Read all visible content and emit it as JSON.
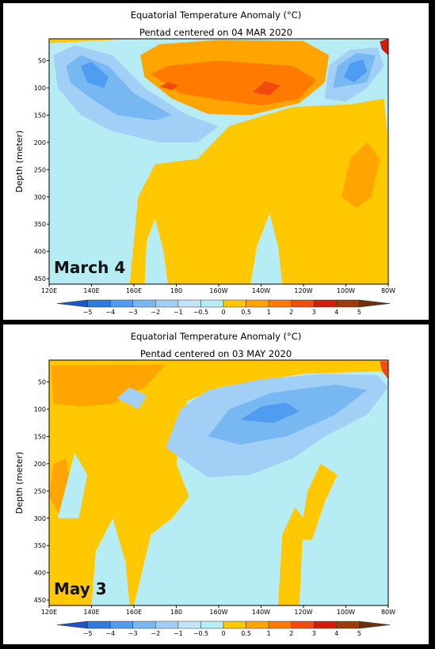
{
  "colors": {
    "le_m5": "#1a55c8",
    "m5_m4": "#2d7be0",
    "m4_m3": "#4e9df0",
    "m3_m2": "#78b8f2",
    "m2_m1": "#a2cff6",
    "m1_m05": "#c4e3f7",
    "m05_0": "#b6ecf3",
    "p0_05": "#ffc800",
    "p05_1": "#ffa400",
    "p1_2": "#ff7a00",
    "p2_3": "#f24a0f",
    "p3_4": "#d41b0c",
    "p4_5": "#9a3d0c",
    "ge_5": "#6b300c"
  },
  "chart_data": [
    {
      "type": "heatmap",
      "title": "Equatorial Temperature Anomaly (°C)",
      "subtitle": "Pentad centered on 04 MAR 2020",
      "ylabel": "Depth (meter)",
      "xlabel": "",
      "overlay_label": "March 4",
      "x_ticks": [
        "120E",
        "140E",
        "160E",
        "180",
        "160W",
        "140W",
        "120W",
        "100W",
        "80W"
      ],
      "y_ticks": [
        "50",
        "100",
        "150",
        "200",
        "250",
        "300",
        "350",
        "400",
        "450"
      ],
      "ylim": [
        460,
        10
      ],
      "colorbar_ticks": [
        "−5",
        "−4",
        "−3",
        "−2",
        "−1",
        "−0.5",
        "0",
        "0.5",
        "1",
        "2",
        "3",
        "4",
        "5"
      ],
      "features": [
        {
          "level": "m05_0",
          "region": "background"
        },
        {
          "level": "p0_05",
          "region": "warm water beneath thermocline, 160E–85W, 150–460 m"
        },
        {
          "level": "p05_1",
          "region": "upper layer 165E–115W, 20–140 m"
        },
        {
          "level": "p1_2",
          "region": "core 170E–125W, 60–130 m"
        },
        {
          "level": "p2_3",
          "region": "peaks near 175E and 145W, ~100 m"
        },
        {
          "level": "m3_m2",
          "region": "cool tongue 128E–170E, 40–180 m"
        },
        {
          "level": "m4_m3",
          "region": "eastern cool core 110W–95W, 40–100 m"
        },
        {
          "level": "p3_4",
          "region": "surface near 82W"
        }
      ]
    },
    {
      "type": "heatmap",
      "title": "Equatorial Temperature Anomaly (°C)",
      "subtitle": "Pentad centered on 03 MAY 2020",
      "ylabel": "Depth (meter)",
      "xlabel": "",
      "overlay_label": "May 3",
      "x_ticks": [
        "120E",
        "140E",
        "160E",
        "180",
        "160W",
        "140W",
        "120W",
        "100W",
        "80W"
      ],
      "y_ticks": [
        "50",
        "100",
        "150",
        "200",
        "250",
        "300",
        "350",
        "400",
        "450"
      ],
      "ylim": [
        460,
        10
      ],
      "colorbar_ticks": [
        "−5",
        "−4",
        "−3",
        "−2",
        "−1",
        "−0.5",
        "0",
        "0.5",
        "1",
        "2",
        "3",
        "4",
        "5"
      ],
      "features": [
        {
          "level": "m05_0",
          "region": "background"
        },
        {
          "level": "p0_05",
          "region": "western Pacific 120E–180, 10–460 m; thin surface layer eastward"
        },
        {
          "level": "p05_1",
          "region": "surface 120E–160E, 20–90 m"
        },
        {
          "level": "m2_m1",
          "region": "cool tongue 160E–88W, 30–230 m"
        },
        {
          "level": "m3_m2",
          "region": "core 160W–100W, 40–170 m"
        },
        {
          "level": "m4_m3",
          "region": "core near 145W, 80–130 m"
        },
        {
          "level": "p0_05",
          "region": "isolated warm plume near 120W, 200–340 m"
        }
      ]
    }
  ]
}
